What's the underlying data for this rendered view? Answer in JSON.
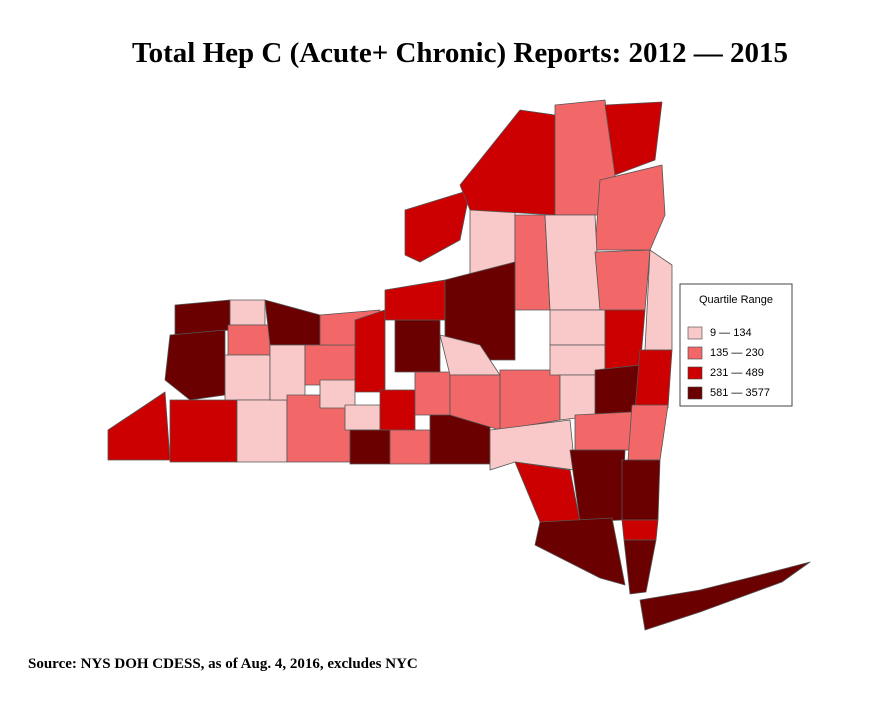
{
  "title": "Total Hep C (Acute+ Chronic) Reports: 2012 — 2015",
  "legend": {
    "title": "Quartile Range",
    "items": [
      {
        "label": "9 — 134",
        "color": "#f9c8c8"
      },
      {
        "label": "135 — 230",
        "color": "#f26868"
      },
      {
        "label": "231 — 489",
        "color": "#cc0000"
      },
      {
        "label": "581 — 3577",
        "color": "#6b0000"
      }
    ]
  },
  "source": "Source: NYS DOH CDESS, as of Aug. 4, 2016, excludes NYC"
}
